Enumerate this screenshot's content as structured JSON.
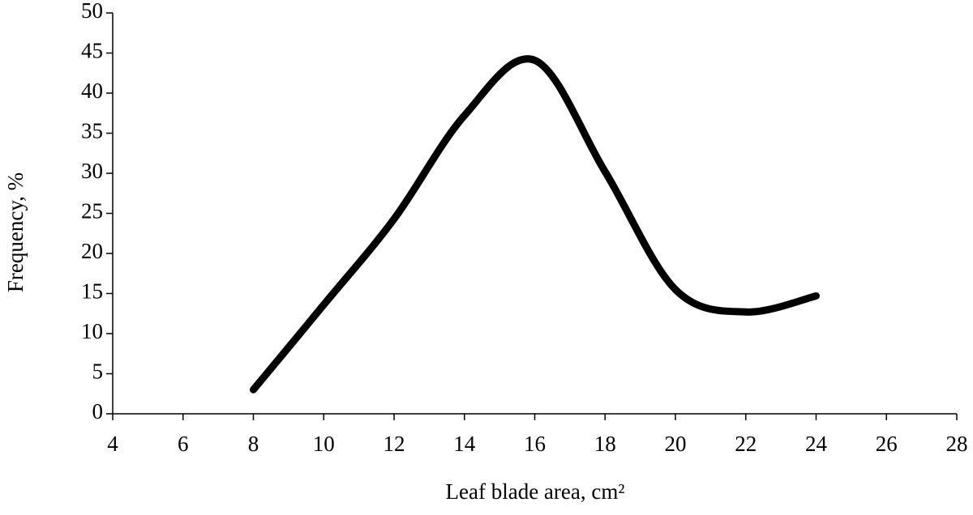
{
  "chart_data": {
    "type": "line",
    "x_label": "Leaf blade area, cm²",
    "y_label": "Frequency, %",
    "x": [
      8,
      10,
      12,
      14,
      16,
      18,
      20,
      22,
      24
    ],
    "series": [
      {
        "color": "#000000",
        "values": [
          3,
          13.6,
          24.3,
          37.2,
          44.1,
          30.2,
          15.5,
          12.7,
          14.7
        ]
      }
    ],
    "smooth": true,
    "xlim": [
      4,
      28
    ],
    "xticks": [
      4,
      6,
      8,
      10,
      12,
      14,
      16,
      18,
      20,
      22,
      24,
      26,
      28
    ],
    "ylim": [
      0,
      50
    ],
    "yticks": [
      0,
      5,
      10,
      15,
      20,
      25,
      30,
      35,
      40,
      45,
      50
    ]
  }
}
